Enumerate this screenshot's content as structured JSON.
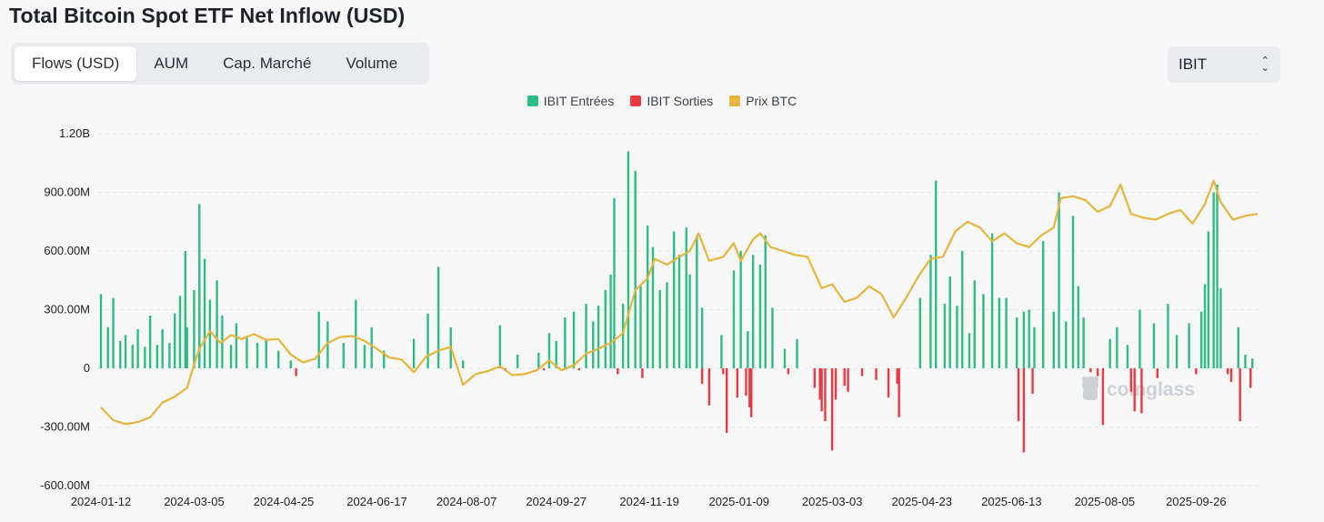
{
  "title": "Total Bitcoin Spot ETF Net Inflow (USD)",
  "tabs": [
    {
      "label": "Flows (USD)",
      "active": true
    },
    {
      "label": "AUM",
      "active": false
    },
    {
      "label": "Cap. Marché",
      "active": false
    },
    {
      "label": "Volume",
      "active": false
    }
  ],
  "selector": {
    "value": "IBIT",
    "icon": "up-down-chevron-icon"
  },
  "legend": [
    {
      "label": "IBIT Entrées",
      "color": "#2ebd85"
    },
    {
      "label": "IBIT Sorties",
      "color": "#ea3943"
    },
    {
      "label": "Prix BTC",
      "color": "#e6b53c"
    }
  ],
  "watermark": "coinglass",
  "colors": {
    "inflow": "#2ebd85",
    "outflow": "#ea3943",
    "price": "#e6b53c",
    "grid": "#e3e5e8"
  },
  "chart_data": {
    "type": "bar",
    "title": "Total Bitcoin Spot ETF Net Inflow (USD)",
    "y_ticks": [
      {
        "value": 1200,
        "label": "1.20B"
      },
      {
        "value": 900,
        "label": "900.00M"
      },
      {
        "value": 600,
        "label": "600.00M"
      },
      {
        "value": 300,
        "label": "300.00M"
      },
      {
        "value": 0,
        "label": "0"
      },
      {
        "value": -300,
        "label": "-300.00M"
      },
      {
        "value": -600,
        "label": "-600.00M"
      }
    ],
    "ylim": [
      -600,
      1200
    ],
    "y_unit": "M USD",
    "x_ticks": [
      "2024-01-12",
      "2024-03-05",
      "2024-04-25",
      "2024-06-17",
      "2024-08-07",
      "2024-09-27",
      "2024-11-19",
      "2025-01-09",
      "2025-03-03",
      "2025-04-23",
      "2025-06-13",
      "2025-08-05",
      "2025-09-26"
    ],
    "x_range": [
      "2024-01-12",
      "2025-10-31"
    ],
    "grid": true,
    "legend_position": "top-center",
    "series": [
      {
        "name": "IBIT Entrées",
        "kind": "bar",
        "points": [
          [
            "2024-01-12",
            380
          ],
          [
            "2024-01-16",
            210
          ],
          [
            "2024-01-19",
            360
          ],
          [
            "2024-01-23",
            140
          ],
          [
            "2024-01-26",
            170
          ],
          [
            "2024-01-30",
            120
          ],
          [
            "2024-02-02",
            200
          ],
          [
            "2024-02-06",
            110
          ],
          [
            "2024-02-09",
            270
          ],
          [
            "2024-02-13",
            120
          ],
          [
            "2024-02-16",
            200
          ],
          [
            "2024-02-20",
            130
          ],
          [
            "2024-02-23",
            280
          ],
          [
            "2024-02-26",
            370
          ],
          [
            "2024-02-29",
            600
          ],
          [
            "2024-03-01",
            210
          ],
          [
            "2024-03-05",
            400
          ],
          [
            "2024-03-08",
            840
          ],
          [
            "2024-03-11",
            560
          ],
          [
            "2024-03-14",
            350
          ],
          [
            "2024-03-18",
            450
          ],
          [
            "2024-03-21",
            270
          ],
          [
            "2024-03-26",
            120
          ],
          [
            "2024-03-29",
            230
          ],
          [
            "2024-04-04",
            160
          ],
          [
            "2024-04-10",
            130
          ],
          [
            "2024-04-15",
            150
          ],
          [
            "2024-04-22",
            90
          ],
          [
            "2024-04-29",
            40
          ],
          [
            "2024-05-15",
            290
          ],
          [
            "2024-05-20",
            240
          ],
          [
            "2024-05-29",
            130
          ],
          [
            "2024-06-05",
            350
          ],
          [
            "2024-06-10",
            120
          ],
          [
            "2024-06-14",
            210
          ],
          [
            "2024-06-21",
            90
          ],
          [
            "2024-07-08",
            150
          ],
          [
            "2024-07-16",
            280
          ],
          [
            "2024-07-22",
            520
          ],
          [
            "2024-07-29",
            210
          ],
          [
            "2024-08-05",
            40
          ],
          [
            "2024-08-26",
            220
          ],
          [
            "2024-09-05",
            70
          ],
          [
            "2024-09-17",
            80
          ],
          [
            "2024-09-23",
            180
          ],
          [
            "2024-09-27",
            140
          ],
          [
            "2024-10-02",
            260
          ],
          [
            "2024-10-07",
            290
          ],
          [
            "2024-10-14",
            330
          ],
          [
            "2024-10-18",
            240
          ],
          [
            "2024-10-21",
            320
          ],
          [
            "2024-10-25",
            400
          ],
          [
            "2024-10-28",
            480
          ],
          [
            "2024-10-30",
            870
          ],
          [
            "2024-11-04",
            330
          ],
          [
            "2024-11-07",
            1110
          ],
          [
            "2024-11-11",
            1010
          ],
          [
            "2024-11-14",
            420
          ],
          [
            "2024-11-18",
            730
          ],
          [
            "2024-11-21",
            620
          ],
          [
            "2024-11-25",
            400
          ],
          [
            "2024-11-29",
            440
          ],
          [
            "2024-12-03",
            700
          ],
          [
            "2024-12-06",
            580
          ],
          [
            "2024-12-10",
            720
          ],
          [
            "2024-12-12",
            480
          ],
          [
            "2024-12-16",
            680
          ],
          [
            "2024-12-19",
            310
          ],
          [
            "2024-12-30",
            170
          ],
          [
            "2025-01-06",
            500
          ],
          [
            "2025-01-10",
            600
          ],
          [
            "2025-01-14",
            190
          ],
          [
            "2025-01-17",
            580
          ],
          [
            "2025-01-21",
            530
          ],
          [
            "2025-01-24",
            680
          ],
          [
            "2025-01-28",
            310
          ],
          [
            "2025-02-04",
            100
          ],
          [
            "2025-02-11",
            150
          ],
          [
            "2025-04-22",
            360
          ],
          [
            "2025-04-28",
            580
          ],
          [
            "2025-05-01",
            960
          ],
          [
            "2025-05-06",
            330
          ],
          [
            "2025-05-09",
            470
          ],
          [
            "2025-05-13",
            320
          ],
          [
            "2025-05-16",
            600
          ],
          [
            "2025-05-20",
            180
          ],
          [
            "2025-05-23",
            450
          ],
          [
            "2025-05-28",
            380
          ],
          [
            "2025-06-02",
            690
          ],
          [
            "2025-06-06",
            360
          ],
          [
            "2025-06-10",
            360
          ],
          [
            "2025-06-16",
            260
          ],
          [
            "2025-06-20",
            290
          ],
          [
            "2025-06-23",
            300
          ],
          [
            "2025-06-26",
            210
          ],
          [
            "2025-07-01",
            650
          ],
          [
            "2025-07-07",
            290
          ],
          [
            "2025-07-10",
            900
          ],
          [
            "2025-07-14",
            240
          ],
          [
            "2025-07-18",
            780
          ],
          [
            "2025-07-21",
            420
          ],
          [
            "2025-07-24",
            260
          ],
          [
            "2025-08-08",
            150
          ],
          [
            "2025-08-12",
            210
          ],
          [
            "2025-08-18",
            120
          ],
          [
            "2025-08-25",
            300
          ],
          [
            "2025-09-02",
            230
          ],
          [
            "2025-09-10",
            330
          ],
          [
            "2025-09-15",
            170
          ],
          [
            "2025-09-22",
            230
          ],
          [
            "2025-09-29",
            290
          ],
          [
            "2025-10-01",
            430
          ],
          [
            "2025-10-03",
            700
          ],
          [
            "2025-10-06",
            900
          ],
          [
            "2025-10-08",
            940
          ],
          [
            "2025-10-10",
            410
          ],
          [
            "2025-10-20",
            210
          ],
          [
            "2025-10-24",
            70
          ],
          [
            "2025-10-28",
            50
          ]
        ]
      },
      {
        "name": "IBIT Sorties",
        "kind": "bar",
        "points": [
          [
            "2024-05-02",
            -40
          ],
          [
            "2024-08-29",
            -15
          ],
          [
            "2024-09-20",
            -10
          ],
          [
            "2024-10-10",
            -10
          ],
          [
            "2024-11-01",
            -30
          ],
          [
            "2024-11-15",
            -50
          ],
          [
            "2024-12-19",
            -80
          ],
          [
            "2024-12-23",
            -190
          ],
          [
            "2024-12-31",
            -30
          ],
          [
            "2025-01-02",
            -330
          ],
          [
            "2025-01-08",
            -150
          ],
          [
            "2025-01-13",
            -140
          ],
          [
            "2025-01-15",
            -200
          ],
          [
            "2025-01-16",
            -250
          ],
          [
            "2025-02-06",
            -30
          ],
          [
            "2025-02-21",
            -100
          ],
          [
            "2025-02-24",
            -160
          ],
          [
            "2025-02-25",
            -220
          ],
          [
            "2025-02-27",
            -270
          ],
          [
            "2025-03-03",
            -420
          ],
          [
            "2025-03-05",
            -160
          ],
          [
            "2025-03-10",
            -90
          ],
          [
            "2025-03-12",
            -120
          ],
          [
            "2025-03-20",
            -40
          ],
          [
            "2025-03-28",
            -60
          ],
          [
            "2025-04-04",
            -150
          ],
          [
            "2025-04-09",
            -80
          ],
          [
            "2025-04-10",
            -250
          ],
          [
            "2025-06-17",
            -270
          ],
          [
            "2025-06-20",
            -430
          ],
          [
            "2025-06-25",
            -130
          ],
          [
            "2025-07-28",
            -20
          ],
          [
            "2025-08-01",
            -40
          ],
          [
            "2025-08-04",
            -290
          ],
          [
            "2025-08-20",
            -120
          ],
          [
            "2025-08-22",
            -220
          ],
          [
            "2025-08-26",
            -230
          ],
          [
            "2025-09-04",
            -50
          ],
          [
            "2025-09-26",
            -30
          ],
          [
            "2025-10-14",
            -30
          ],
          [
            "2025-10-16",
            -70
          ],
          [
            "2025-10-21",
            -270
          ],
          [
            "2025-10-27",
            -100
          ]
        ]
      },
      {
        "name": "Prix BTC",
        "kind": "line",
        "points": [
          [
            "2024-01-12",
            -200
          ],
          [
            "2024-01-19",
            -265
          ],
          [
            "2024-01-26",
            -285
          ],
          [
            "2024-02-02",
            -275
          ],
          [
            "2024-02-09",
            -250
          ],
          [
            "2024-02-16",
            -175
          ],
          [
            "2024-02-23",
            -145
          ],
          [
            "2024-03-01",
            -100
          ],
          [
            "2024-03-05",
            20
          ],
          [
            "2024-03-08",
            100
          ],
          [
            "2024-03-14",
            190
          ],
          [
            "2024-03-20",
            130
          ],
          [
            "2024-03-26",
            170
          ],
          [
            "2024-04-01",
            150
          ],
          [
            "2024-04-08",
            175
          ],
          [
            "2024-04-15",
            145
          ],
          [
            "2024-04-22",
            150
          ],
          [
            "2024-04-29",
            70
          ],
          [
            "2024-05-06",
            30
          ],
          [
            "2024-05-13",
            50
          ],
          [
            "2024-05-20",
            130
          ],
          [
            "2024-05-27",
            160
          ],
          [
            "2024-06-03",
            165
          ],
          [
            "2024-06-10",
            140
          ],
          [
            "2024-06-17",
            100
          ],
          [
            "2024-06-24",
            55
          ],
          [
            "2024-07-01",
            45
          ],
          [
            "2024-07-08",
            -20
          ],
          [
            "2024-07-15",
            60
          ],
          [
            "2024-07-22",
            90
          ],
          [
            "2024-07-29",
            110
          ],
          [
            "2024-08-05",
            -85
          ],
          [
            "2024-08-12",
            -30
          ],
          [
            "2024-08-19",
            -15
          ],
          [
            "2024-08-26",
            10
          ],
          [
            "2024-09-02",
            -35
          ],
          [
            "2024-09-09",
            -30
          ],
          [
            "2024-09-16",
            -10
          ],
          [
            "2024-09-23",
            40
          ],
          [
            "2024-09-30",
            -10
          ],
          [
            "2024-10-07",
            15
          ],
          [
            "2024-10-14",
            75
          ],
          [
            "2024-10-21",
            100
          ],
          [
            "2024-10-28",
            130
          ],
          [
            "2024-11-04",
            180
          ],
          [
            "2024-11-11",
            400
          ],
          [
            "2024-11-18",
            460
          ],
          [
            "2024-11-22",
            560
          ],
          [
            "2024-11-29",
            530
          ],
          [
            "2024-12-06",
            570
          ],
          [
            "2024-12-12",
            600
          ],
          [
            "2024-12-17",
            690
          ],
          [
            "2024-12-23",
            550
          ],
          [
            "2024-12-31",
            570
          ],
          [
            "2025-01-06",
            640
          ],
          [
            "2025-01-10",
            550
          ],
          [
            "2025-01-17",
            660
          ],
          [
            "2025-01-21",
            690
          ],
          [
            "2025-01-27",
            620
          ],
          [
            "2025-02-03",
            600
          ],
          [
            "2025-02-10",
            580
          ],
          [
            "2025-02-17",
            570
          ],
          [
            "2025-02-25",
            410
          ],
          [
            "2025-03-03",
            430
          ],
          [
            "2025-03-10",
            340
          ],
          [
            "2025-03-17",
            360
          ],
          [
            "2025-03-24",
            420
          ],
          [
            "2025-03-31",
            380
          ],
          [
            "2025-04-07",
            260
          ],
          [
            "2025-04-14",
            360
          ],
          [
            "2025-04-21",
            470
          ],
          [
            "2025-04-28",
            560
          ],
          [
            "2025-05-05",
            570
          ],
          [
            "2025-05-12",
            700
          ],
          [
            "2025-05-19",
            750
          ],
          [
            "2025-05-26",
            720
          ],
          [
            "2025-06-02",
            650
          ],
          [
            "2025-06-09",
            690
          ],
          [
            "2025-06-16",
            640
          ],
          [
            "2025-06-23",
            620
          ],
          [
            "2025-06-30",
            680
          ],
          [
            "2025-07-07",
            720
          ],
          [
            "2025-07-11",
            870
          ],
          [
            "2025-07-18",
            880
          ],
          [
            "2025-07-25",
            860
          ],
          [
            "2025-08-01",
            800
          ],
          [
            "2025-08-08",
            830
          ],
          [
            "2025-08-14",
            940
          ],
          [
            "2025-08-20",
            790
          ],
          [
            "2025-08-27",
            770
          ],
          [
            "2025-09-03",
            760
          ],
          [
            "2025-09-10",
            790
          ],
          [
            "2025-09-17",
            810
          ],
          [
            "2025-09-24",
            740
          ],
          [
            "2025-10-01",
            840
          ],
          [
            "2025-10-06",
            960
          ],
          [
            "2025-10-10",
            850
          ],
          [
            "2025-10-17",
            760
          ],
          [
            "2025-10-24",
            780
          ],
          [
            "2025-10-31",
            790
          ]
        ]
      }
    ]
  }
}
